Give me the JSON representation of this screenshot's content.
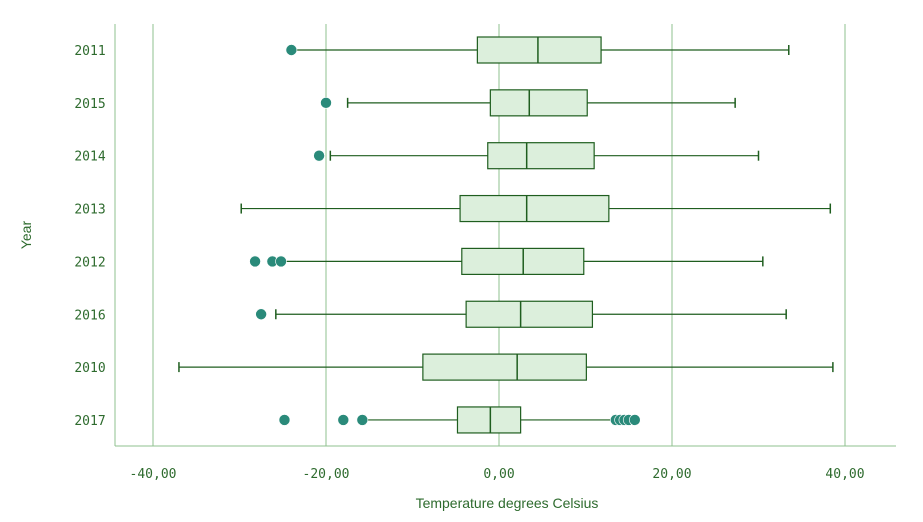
{
  "chart_data": {
    "type": "boxplot",
    "orientation": "horizontal",
    "xlabel": "Temperature degrees Celsius",
    "ylabel": "Year",
    "xlim": [
      -45,
      46
    ],
    "x_ticks": [
      -40,
      -20,
      0,
      20,
      40
    ],
    "x_tick_labels": [
      "-40,00",
      "-20,00",
      "0,00",
      "20,00",
      "40,00"
    ],
    "grid": "vertical",
    "colors": {
      "axis": "#8fc18f",
      "box_fill": "#dcefdc",
      "box_stroke": "#1f5e1f",
      "outlier": "#2a8a7a",
      "text": "#2e6b2e"
    },
    "categories": [
      "2011",
      "2015",
      "2014",
      "2013",
      "2012",
      "2016",
      "2010",
      "2017"
    ],
    "boxes": [
      {
        "year": "2011",
        "whisker_low": -24,
        "q1": -2.5,
        "median": 4.5,
        "q3": 11.8,
        "whisker_high": 33.5,
        "outliers": [
          -24
        ]
      },
      {
        "year": "2015",
        "whisker_low": -17.5,
        "q1": -1,
        "median": 3.5,
        "q3": 10.2,
        "whisker_high": 27.3,
        "outliers": [
          -20
        ]
      },
      {
        "year": "2014",
        "whisker_low": -19.5,
        "q1": -1.3,
        "median": 3.2,
        "q3": 11,
        "whisker_high": 30,
        "outliers": [
          -20.8
        ]
      },
      {
        "year": "2013",
        "whisker_low": -29.8,
        "q1": -4.5,
        "median": 3.2,
        "q3": 12.7,
        "whisker_high": 38.3,
        "outliers": []
      },
      {
        "year": "2012",
        "whisker_low": -25.2,
        "q1": -4.3,
        "median": 2.8,
        "q3": 9.8,
        "whisker_high": 30.5,
        "outliers": [
          -28.2,
          -26.2,
          -25.2
        ]
      },
      {
        "year": "2016",
        "whisker_low": -25.8,
        "q1": -3.8,
        "median": 2.5,
        "q3": 10.8,
        "whisker_high": 33.2,
        "outliers": [
          -27.5
        ]
      },
      {
        "year": "2010",
        "whisker_low": -37,
        "q1": -8.8,
        "median": 2.1,
        "q3": 10.1,
        "whisker_high": 38.6,
        "outliers": []
      },
      {
        "year": "2017",
        "whisker_low": -15.5,
        "q1": -4.8,
        "median": -1,
        "q3": 2.5,
        "whisker_high": 13.2,
        "outliers": [
          -24.8,
          -18,
          -15.8,
          13.5,
          14,
          14.5,
          15,
          15.7
        ]
      }
    ]
  }
}
